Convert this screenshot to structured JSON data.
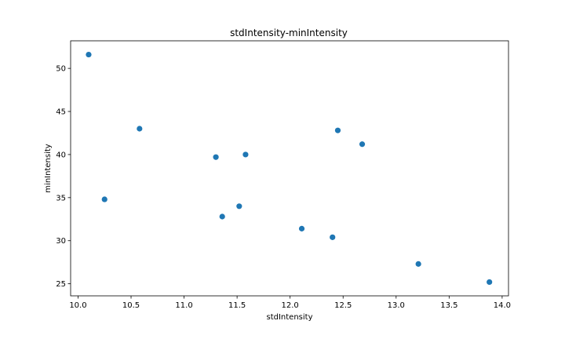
{
  "chart_data": {
    "type": "scatter",
    "title": "stdIntensity-minIntensity",
    "xlabel": "stdIntensity",
    "ylabel": "minIntensity",
    "xlim": [
      9.93,
      14.06
    ],
    "ylim": [
      23.6,
      53.2
    ],
    "xticks": [
      "10.0",
      "10.5",
      "11.0",
      "11.5",
      "12.0",
      "12.5",
      "13.0",
      "13.5",
      "14.0"
    ],
    "xtick_values": [
      10.0,
      10.5,
      11.0,
      11.5,
      12.0,
      12.5,
      13.0,
      13.5,
      14.0
    ],
    "yticks": [
      "25",
      "30",
      "35",
      "40",
      "45",
      "50"
    ],
    "ytick_values": [
      25,
      30,
      35,
      40,
      45,
      50
    ],
    "grid": false,
    "marker_color": "#1f77b4",
    "points": [
      {
        "x": 10.1,
        "y": 51.6
      },
      {
        "x": 10.25,
        "y": 34.8
      },
      {
        "x": 10.58,
        "y": 43.0
      },
      {
        "x": 11.3,
        "y": 39.7
      },
      {
        "x": 11.36,
        "y": 32.8
      },
      {
        "x": 11.52,
        "y": 34.0
      },
      {
        "x": 11.58,
        "y": 40.0
      },
      {
        "x": 12.11,
        "y": 31.4
      },
      {
        "x": 12.4,
        "y": 30.4
      },
      {
        "x": 12.45,
        "y": 42.8
      },
      {
        "x": 12.68,
        "y": 41.2
      },
      {
        "x": 13.21,
        "y": 27.3
      },
      {
        "x": 13.88,
        "y": 25.2
      }
    ]
  }
}
